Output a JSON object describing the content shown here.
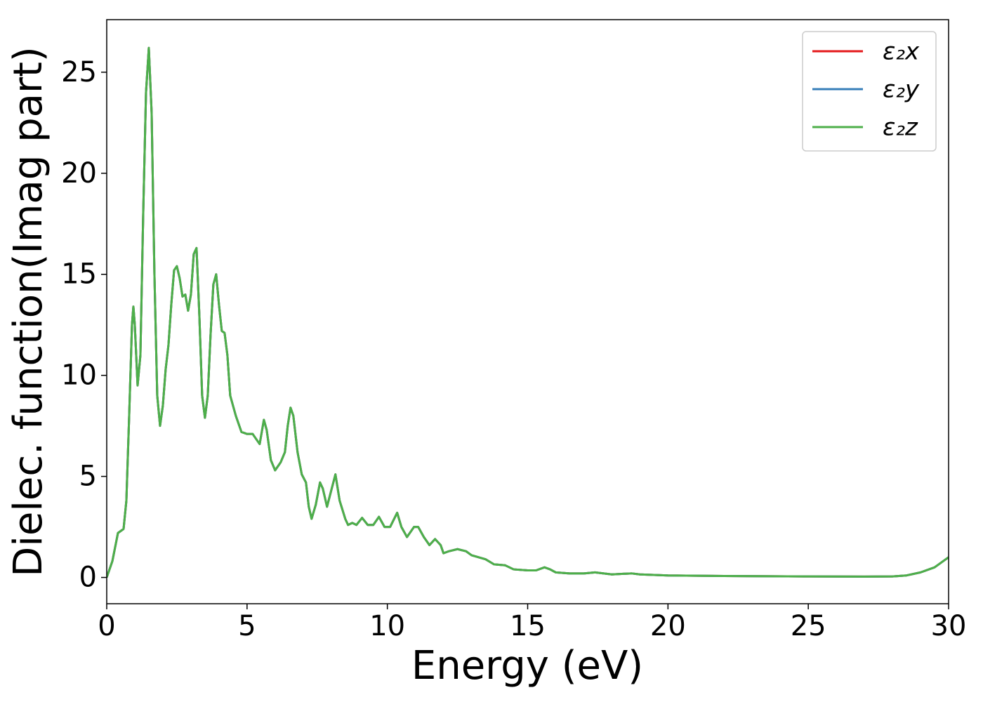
{
  "chart_data": {
    "type": "line",
    "x_label": "Energy (eV)",
    "y_label": "Dielec. function(Imag part)",
    "x": [
      0,
      0.2,
      0.4,
      0.6,
      0.7,
      0.8,
      0.9,
      0.95,
      1.0,
      1.1,
      1.2,
      1.3,
      1.4,
      1.5,
      1.6,
      1.7,
      1.8,
      1.9,
      2.0,
      2.1,
      2.2,
      2.3,
      2.4,
      2.5,
      2.6,
      2.7,
      2.8,
      2.9,
      3.0,
      3.1,
      3.2,
      3.3,
      3.4,
      3.5,
      3.6,
      3.7,
      3.8,
      3.9,
      4.0,
      4.1,
      4.2,
      4.3,
      4.4,
      4.6,
      4.8,
      5.0,
      5.2,
      5.3,
      5.45,
      5.6,
      5.7,
      5.85,
      6.0,
      6.2,
      6.35,
      6.45,
      6.55,
      6.65,
      6.8,
      6.95,
      7.1,
      7.2,
      7.3,
      7.45,
      7.6,
      7.7,
      7.85,
      8.0,
      8.15,
      8.3,
      8.5,
      8.6,
      8.75,
      8.9,
      9.1,
      9.3,
      9.5,
      9.7,
      9.9,
      10.1,
      10.35,
      10.5,
      10.7,
      10.95,
      11.1,
      11.3,
      11.5,
      11.7,
      11.9,
      12.0,
      12.2,
      12.5,
      12.8,
      13.0,
      13.5,
      13.8,
      14.2,
      14.5,
      15.0,
      15.3,
      15.6,
      15.8,
      16.0,
      16.5,
      17.0,
      17.4,
      18.0,
      18.7,
      19.0,
      20,
      22,
      25,
      27,
      28,
      28.5,
      29,
      29.5,
      30
    ],
    "series": [
      {
        "name": "ε₂x",
        "color": "#e41a1c",
        "values": [
          0.0,
          0.8,
          2.2,
          2.4,
          3.8,
          8,
          12.5,
          13.4,
          12.5,
          9.5,
          11,
          18,
          24,
          26.2,
          23,
          15,
          9,
          7.5,
          8.5,
          10.3,
          11.5,
          13.5,
          15.2,
          15.4,
          14.8,
          13.9,
          14,
          13.2,
          14,
          16,
          16.3,
          13,
          9,
          7.9,
          9,
          12,
          14.5,
          15,
          13.5,
          12.2,
          12.1,
          11,
          9,
          8,
          7.2,
          7.1,
          7.1,
          6.9,
          6.6,
          7.8,
          7.3,
          5.8,
          5.3,
          5.7,
          6.2,
          7.5,
          8.4,
          8,
          6.2,
          5.1,
          4.7,
          3.5,
          2.9,
          3.6,
          4.7,
          4.4,
          3.5,
          4.3,
          5.1,
          3.8,
          2.9,
          2.6,
          2.7,
          2.6,
          2.95,
          2.6,
          2.6,
          3,
          2.5,
          2.5,
          3.2,
          2.5,
          2.0,
          2.5,
          2.5,
          2.0,
          1.6,
          1.9,
          1.6,
          1.2,
          1.3,
          1.4,
          1.3,
          1.1,
          0.9,
          0.65,
          0.6,
          0.4,
          0.35,
          0.35,
          0.5,
          0.4,
          0.25,
          0.2,
          0.2,
          0.25,
          0.15,
          0.2,
          0.15,
          0.1,
          0.07,
          0.05,
          0.04,
          0.05,
          0.1,
          0.25,
          0.5,
          1.0
        ]
      },
      {
        "name": "ε₂y",
        "color": "#377eb8",
        "values": [
          0.0,
          0.8,
          2.2,
          2.4,
          3.8,
          8,
          12.5,
          13.4,
          12.5,
          9.5,
          11,
          18,
          24,
          26.2,
          23,
          15,
          9,
          7.5,
          8.5,
          10.3,
          11.5,
          13.5,
          15.2,
          15.4,
          14.8,
          13.9,
          14,
          13.2,
          14,
          16,
          16.3,
          13,
          9,
          7.9,
          9,
          12,
          14.5,
          15,
          13.5,
          12.2,
          12.1,
          11,
          9,
          8,
          7.2,
          7.1,
          7.1,
          6.9,
          6.6,
          7.8,
          7.3,
          5.8,
          5.3,
          5.7,
          6.2,
          7.5,
          8.4,
          8,
          6.2,
          5.1,
          4.7,
          3.5,
          2.9,
          3.6,
          4.7,
          4.4,
          3.5,
          4.3,
          5.1,
          3.8,
          2.9,
          2.6,
          2.7,
          2.6,
          2.95,
          2.6,
          2.6,
          3,
          2.5,
          2.5,
          3.2,
          2.5,
          2.0,
          2.5,
          2.5,
          2.0,
          1.6,
          1.9,
          1.6,
          1.2,
          1.3,
          1.4,
          1.3,
          1.1,
          0.9,
          0.65,
          0.6,
          0.4,
          0.35,
          0.35,
          0.5,
          0.4,
          0.25,
          0.2,
          0.2,
          0.25,
          0.15,
          0.2,
          0.15,
          0.1,
          0.07,
          0.05,
          0.04,
          0.05,
          0.1,
          0.25,
          0.5,
          1.0
        ]
      },
      {
        "name": "ε₂z",
        "color": "#4daf4a",
        "values": [
          0.0,
          0.8,
          2.2,
          2.4,
          3.8,
          8,
          12.5,
          13.4,
          12.5,
          9.5,
          11,
          18,
          24,
          26.2,
          23,
          15,
          9,
          7.5,
          8.5,
          10.3,
          11.5,
          13.5,
          15.2,
          15.4,
          14.8,
          13.9,
          14,
          13.2,
          14,
          16,
          16.3,
          13,
          9,
          7.9,
          9,
          12,
          14.5,
          15,
          13.5,
          12.2,
          12.1,
          11,
          9,
          8,
          7.2,
          7.1,
          7.1,
          6.9,
          6.6,
          7.8,
          7.3,
          5.8,
          5.3,
          5.7,
          6.2,
          7.5,
          8.4,
          8,
          6.2,
          5.1,
          4.7,
          3.5,
          2.9,
          3.6,
          4.7,
          4.4,
          3.5,
          4.3,
          5.1,
          3.8,
          2.9,
          2.6,
          2.7,
          2.6,
          2.95,
          2.6,
          2.6,
          3,
          2.5,
          2.5,
          3.2,
          2.5,
          2.0,
          2.5,
          2.5,
          2.0,
          1.6,
          1.9,
          1.6,
          1.2,
          1.3,
          1.4,
          1.3,
          1.1,
          0.9,
          0.65,
          0.6,
          0.4,
          0.35,
          0.35,
          0.5,
          0.4,
          0.25,
          0.2,
          0.2,
          0.25,
          0.15,
          0.2,
          0.15,
          0.1,
          0.07,
          0.05,
          0.04,
          0.05,
          0.1,
          0.25,
          0.5,
          1.0
        ]
      }
    ],
    "xlim": [
      0,
      30
    ],
    "xticks": [
      0,
      5,
      10,
      15,
      20,
      25,
      30
    ],
    "ylim": [
      -1.3,
      27.6
    ],
    "yticks": [
      0,
      5,
      10,
      15,
      20,
      25
    ],
    "grid": false,
    "legend": "upper right"
  }
}
